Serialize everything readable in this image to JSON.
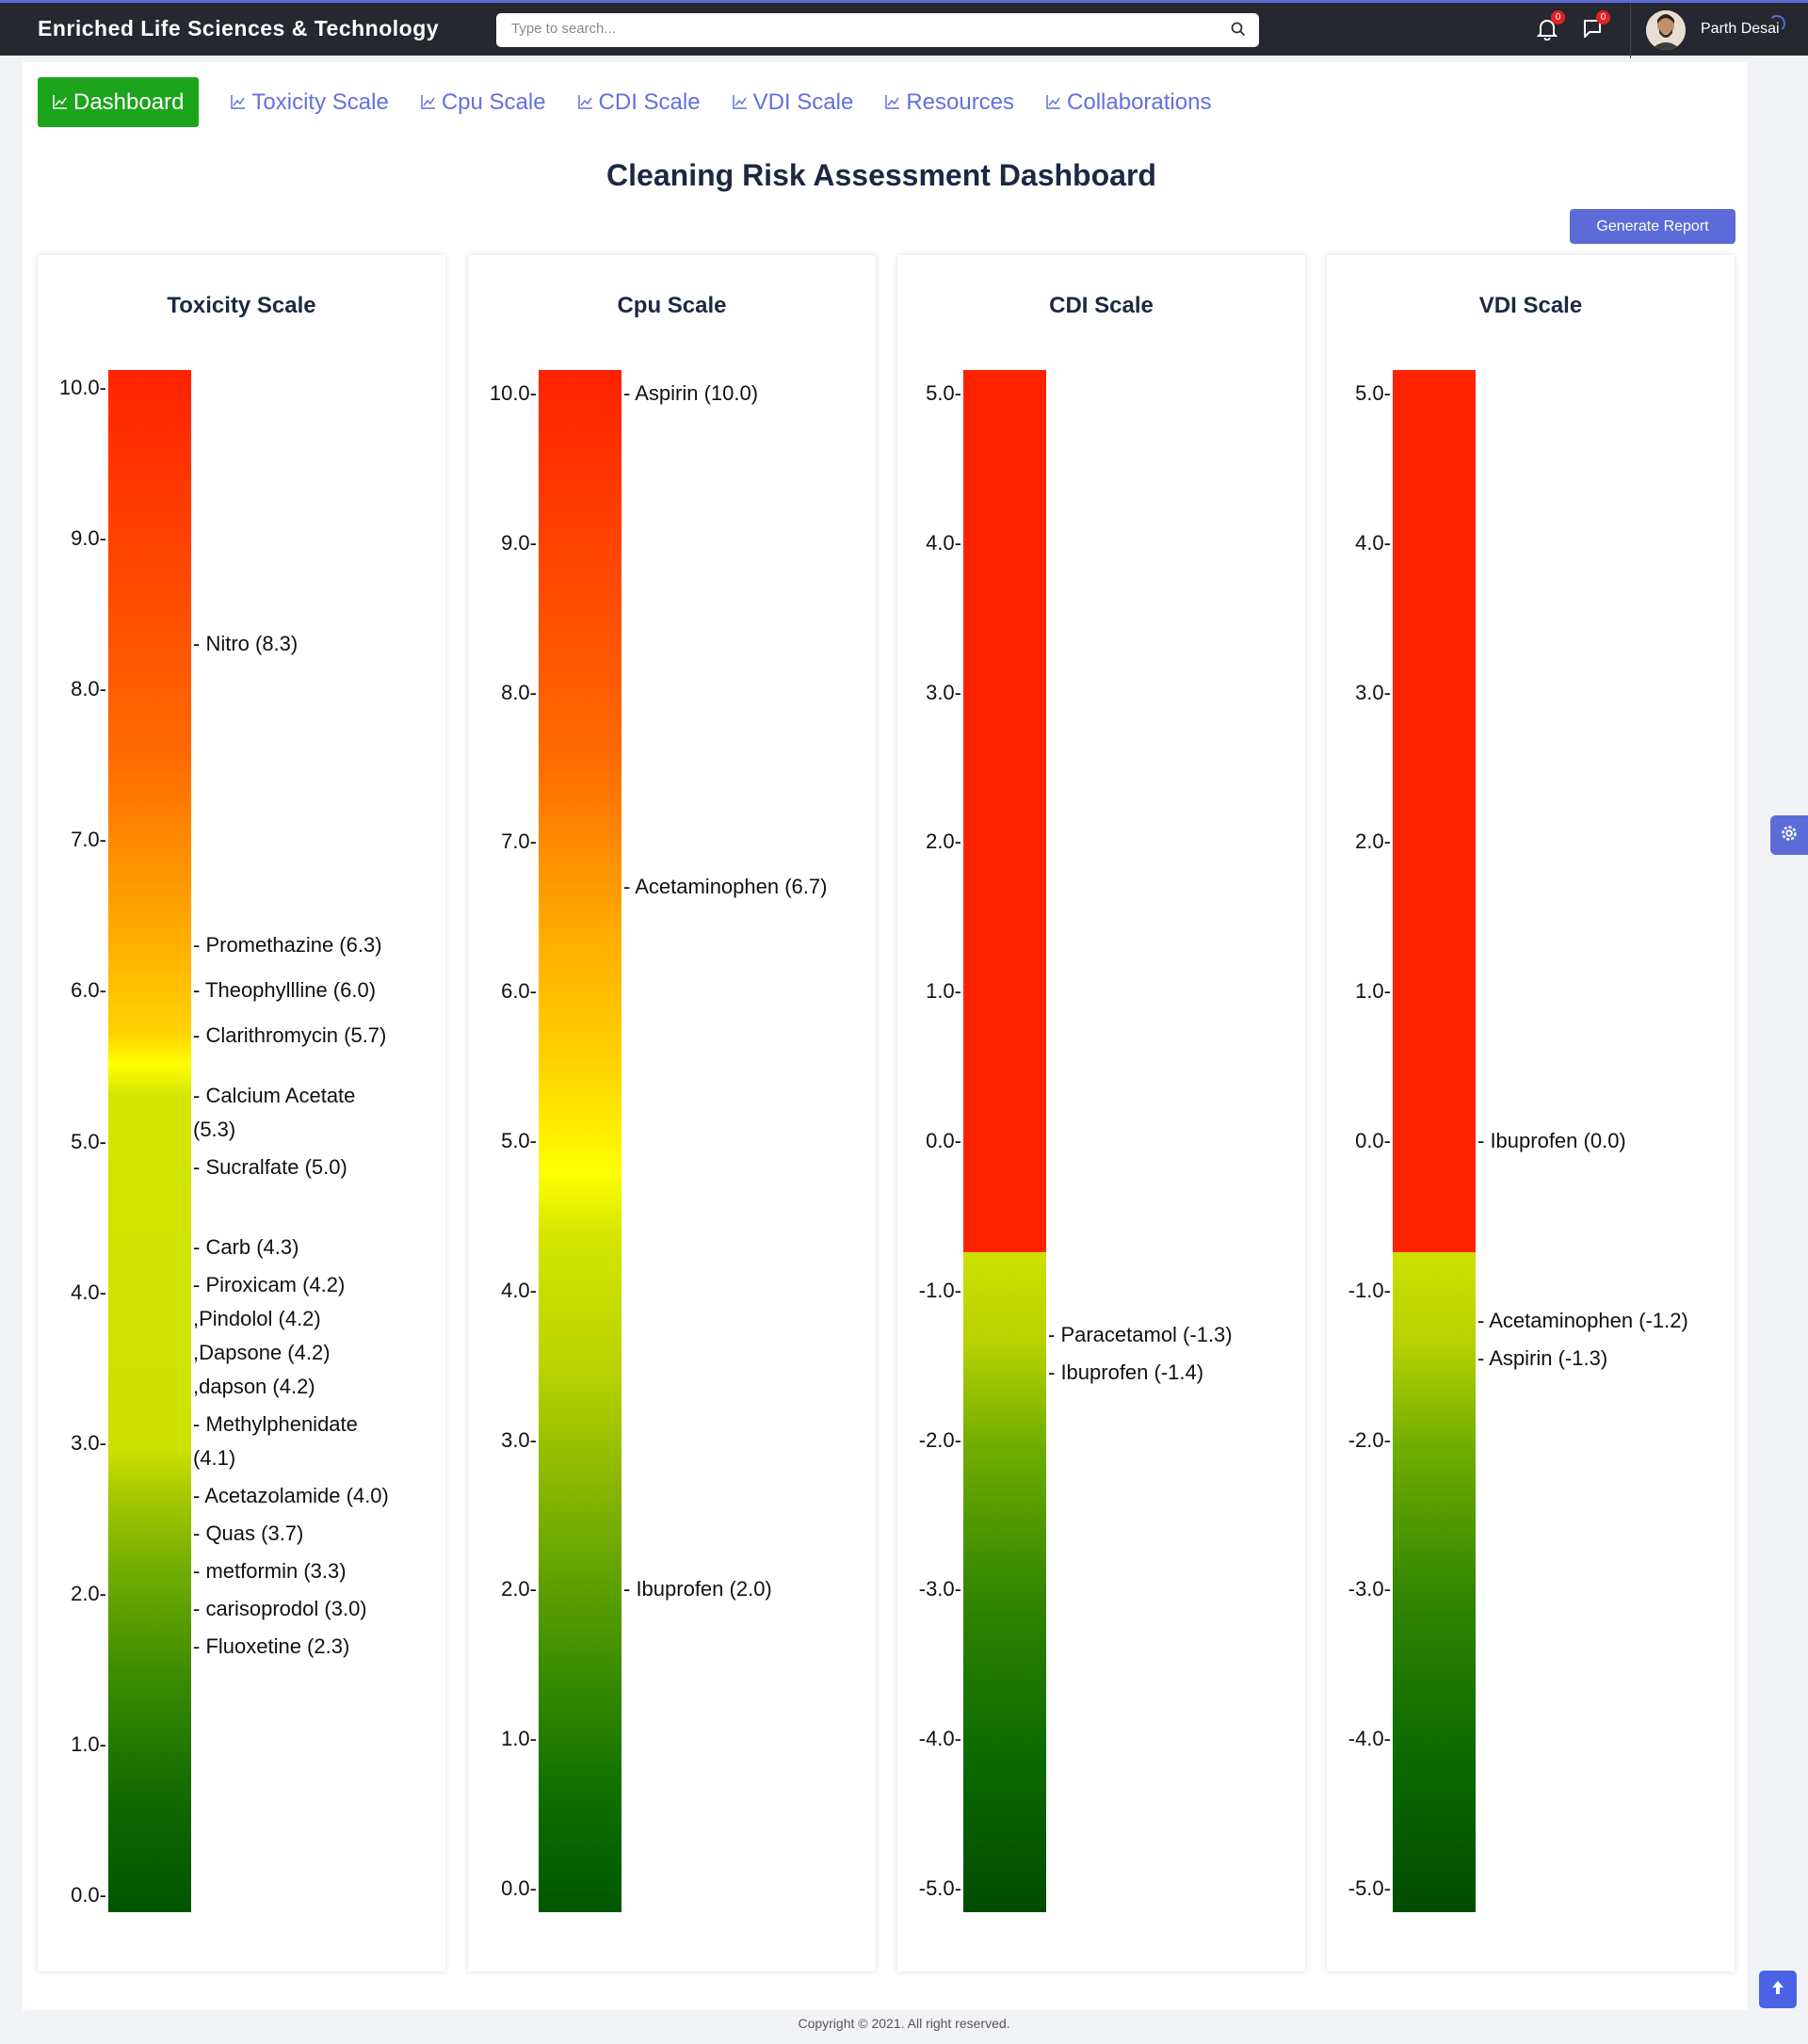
{
  "header": {
    "brand": "Enriched Life Sciences & Technology",
    "search_placeholder": "Type to search...",
    "notifications_count": "0",
    "messages_count": "0",
    "user_name": "Parth Desai"
  },
  "nav": {
    "items": [
      {
        "label": "Dashboard",
        "active": true
      },
      {
        "label": "Toxicity Scale"
      },
      {
        "label": "Cpu Scale"
      },
      {
        "label": "CDI Scale"
      },
      {
        "label": "VDI Scale"
      },
      {
        "label": "Resources"
      },
      {
        "label": "Collaborations"
      }
    ]
  },
  "page": {
    "title": "Cleaning Risk Assessment Dashboard",
    "report_button": "Generate Report"
  },
  "footer": {
    "text": "Copyright © 2021. All right reserved."
  },
  "colors": {
    "accent": "#5c6bd8",
    "active_tab": "#1ca41c",
    "topbar": "#25282f"
  },
  "chart_data": [
    {
      "type": "bar",
      "title": "Toxicity Scale",
      "ylim": [
        0,
        10
      ],
      "ticks": [
        "10.0-",
        "9.0-",
        "8.0-",
        "7.0-",
        "6.0-",
        "5.0-",
        "4.0-",
        "3.0-",
        "2.0-",
        "1.0-",
        "0.0-"
      ],
      "markers": [
        {
          "label": "- Nitro (8.3)",
          "value": 8.3
        },
        {
          "label": "- Promethazine (6.3)",
          "value": 6.3
        },
        {
          "label": "- Theophyllline (6.0)",
          "value": 6.0
        },
        {
          "label": "- Clarithromycin (5.7)",
          "value": 5.7
        },
        {
          "label": "- Calcium Acetate\n(5.3)",
          "value": 5.3
        },
        {
          "label": "- Sucralfate (5.0)",
          "value": 5.0
        },
        {
          "label": "- Carb (4.3)",
          "value": 4.3
        },
        {
          "label": "- Piroxicam (4.2)\n,Pindolol (4.2)\n,Dapsone (4.2)\n,dapson (4.2)",
          "value": 4.2
        },
        {
          "label": "- Methylphenidate\n(4.1)",
          "value": 4.1
        },
        {
          "label": "- Acetazolamide (4.0)",
          "value": 4.0
        },
        {
          "label": "- Quas (3.7)",
          "value": 3.7
        },
        {
          "label": "- metformin (3.3)",
          "value": 3.3
        },
        {
          "label": "- carisoprodol (3.0)",
          "value": 3.0
        },
        {
          "label": "- Fluoxetine (2.3)",
          "value": 2.3
        }
      ]
    },
    {
      "type": "bar",
      "title": "Cpu Scale",
      "ylim": [
        0,
        10
      ],
      "ticks": [
        "10.0-",
        "9.0-",
        "8.0-",
        "7.0-",
        "6.0-",
        "5.0-",
        "4.0-",
        "3.0-",
        "2.0-",
        "1.0-",
        "0.0-"
      ],
      "markers": [
        {
          "label": "- Aspirin (10.0)",
          "value": 10.0
        },
        {
          "label": "- Acetaminophen (6.7)",
          "value": 6.7
        },
        {
          "label": "- Ibuprofen (2.0)",
          "value": 2.0
        }
      ]
    },
    {
      "type": "bar",
      "title": "CDI Scale",
      "ylim": [
        -5,
        5
      ],
      "ticks": [
        "5.0-",
        "4.0-",
        "3.0-",
        "2.0-",
        "1.0-",
        "0.0-",
        "-1.0-",
        "-2.0-",
        "-3.0-",
        "-4.0-",
        "-5.0-"
      ],
      "markers": [
        {
          "label": "- Paracetamol (-1.3)",
          "value": -1.3
        },
        {
          "label": "- Ibuprofen (-1.4)",
          "value": -1.4
        }
      ]
    },
    {
      "type": "bar",
      "title": "VDI Scale",
      "ylim": [
        -5,
        5
      ],
      "ticks": [
        "5.0-",
        "4.0-",
        "3.0-",
        "2.0-",
        "1.0-",
        "0.0-",
        "-1.0-",
        "-2.0-",
        "-3.0-",
        "-4.0-",
        "-5.0-"
      ],
      "markers": [
        {
          "label": "- Ibuprofen (0.0)",
          "value": 0.0
        },
        {
          "label": "- Acetaminophen (-1.2)",
          "value": -1.2
        },
        {
          "label": "- Aspirin (-1.3)",
          "value": -1.3
        }
      ]
    }
  ]
}
